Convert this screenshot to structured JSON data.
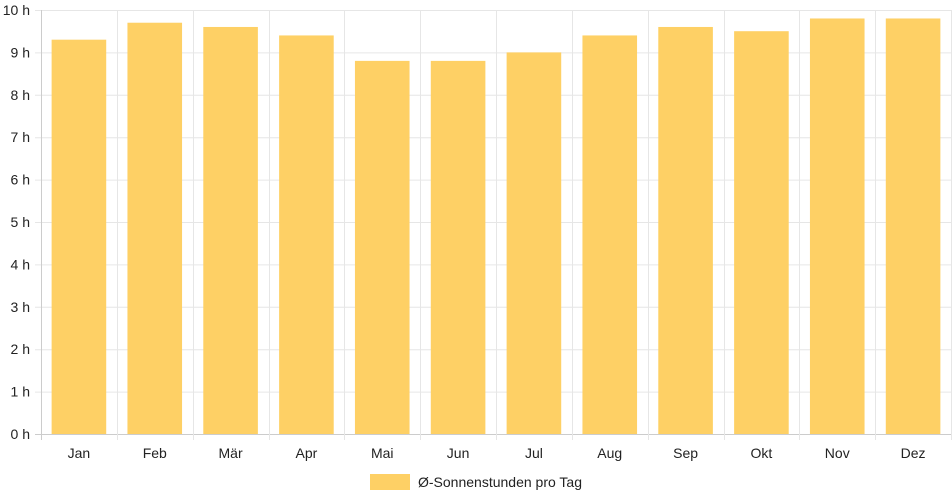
{
  "chart_data": {
    "type": "bar",
    "categories": [
      "Jan",
      "Feb",
      "Mär",
      "Apr",
      "Mai",
      "Jun",
      "Jul",
      "Aug",
      "Sep",
      "Okt",
      "Nov",
      "Dez"
    ],
    "series": [
      {
        "name": "Ø-Sonnenstunden pro Tag",
        "values": [
          9.3,
          9.7,
          9.6,
          9.4,
          8.8,
          8.8,
          9.0,
          9.4,
          9.6,
          9.5,
          9.8,
          9.8
        ]
      }
    ],
    "y_ticks": [
      "0 h",
      "1 h",
      "2 h",
      "3 h",
      "4 h",
      "5 h",
      "6 h",
      "7 h",
      "8 h",
      "9 h",
      "10 h"
    ],
    "ylim": [
      0,
      10
    ],
    "grid": true,
    "legend_position": "bottom",
    "colors": {
      "bar": "#fed065",
      "grid": "#e6e6e6",
      "axis": "#cccccc",
      "text": "#222222"
    }
  }
}
